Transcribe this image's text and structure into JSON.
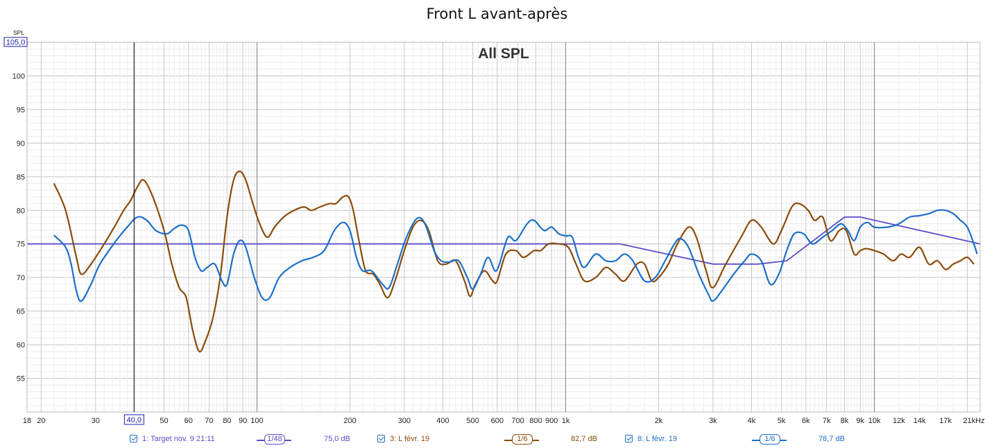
{
  "title": "Front L avant-après",
  "chart_data": {
    "type": "line",
    "title": "Front L avant-après",
    "subtitle": "All SPL",
    "ylabel": "SPL",
    "x_scale": "log",
    "x_unit": "kHz",
    "xlim": [
      18,
      22000
    ],
    "ylim": [
      50,
      105
    ],
    "y_ticks": [
      55,
      60,
      65,
      70,
      75,
      80,
      85,
      90,
      95,
      100
    ],
    "y_readout": "105,0",
    "x_readout": "40,0",
    "x_ticks": [
      {
        "v": 18,
        "label": "18"
      },
      {
        "v": 20,
        "label": "20"
      },
      {
        "v": 30,
        "label": "30"
      },
      {
        "v": 50,
        "label": "50"
      },
      {
        "v": 60,
        "label": "60"
      },
      {
        "v": 70,
        "label": "70"
      },
      {
        "v": 80,
        "label": "80"
      },
      {
        "v": 90,
        "label": "90"
      },
      {
        "v": 100,
        "label": "100"
      },
      {
        "v": 200,
        "label": "200"
      },
      {
        "v": 300,
        "label": "300"
      },
      {
        "v": 400,
        "label": "400"
      },
      {
        "v": 500,
        "label": "500"
      },
      {
        "v": 600,
        "label": "600"
      },
      {
        "v": 700,
        "label": "700"
      },
      {
        "v": 800,
        "label": "800"
      },
      {
        "v": 900,
        "label": "900"
      },
      {
        "v": 1000,
        "label": "1k"
      },
      {
        "v": 2000,
        "label": "2k"
      },
      {
        "v": 3000,
        "label": "3k"
      },
      {
        "v": 4000,
        "label": "4k"
      },
      {
        "v": 5000,
        "label": "5k"
      },
      {
        "v": 6000,
        "label": "6k"
      },
      {
        "v": 7000,
        "label": "7k"
      },
      {
        "v": 8000,
        "label": "8k"
      },
      {
        "v": 9000,
        "label": "9k"
      },
      {
        "v": 10000,
        "label": "10k"
      },
      {
        "v": 12000,
        "label": "12k"
      },
      {
        "v": 14000,
        "label": "14k"
      },
      {
        "v": 17000,
        "label": "17k"
      },
      {
        "v": 21000,
        "label": "21kHz"
      }
    ],
    "cursor_x": 40,
    "grid": true,
    "legend_position": "bottom",
    "series": [
      {
        "name": "1: Target nov. 9 21:11",
        "color": "#5a4fc9",
        "smoothing": "1/48",
        "level": "75,0 dB",
        "points": [
          [
            18,
            75
          ],
          [
            1500,
            75
          ],
          [
            3000,
            72
          ],
          [
            4200,
            72
          ],
          [
            5200,
            72.5
          ],
          [
            8000,
            79
          ],
          [
            9000,
            79
          ],
          [
            22000,
            75
          ]
        ]
      },
      {
        "name": "3: L févr. 19",
        "color": "#8b4a0a",
        "smoothing": "1/6",
        "level": "82,7 dB",
        "points": [
          [
            22,
            84
          ],
          [
            24,
            80
          ],
          [
            26,
            73
          ],
          [
            27,
            70.5
          ],
          [
            29,
            72
          ],
          [
            32,
            75
          ],
          [
            35,
            78
          ],
          [
            37,
            80
          ],
          [
            39,
            81.5
          ],
          [
            41,
            83.5
          ],
          [
            43,
            84.5
          ],
          [
            46,
            82
          ],
          [
            50,
            77
          ],
          [
            53,
            72
          ],
          [
            56,
            68.5
          ],
          [
            59,
            67
          ],
          [
            62,
            62
          ],
          [
            65,
            59
          ],
          [
            68,
            60.5
          ],
          [
            72,
            64
          ],
          [
            76,
            70
          ],
          [
            80,
            79
          ],
          [
            84,
            84.5
          ],
          [
            88,
            85.8
          ],
          [
            92,
            84.5
          ],
          [
            97,
            81
          ],
          [
            102,
            78
          ],
          [
            108,
            76
          ],
          [
            114,
            77.5
          ],
          [
            122,
            79
          ],
          [
            132,
            80
          ],
          [
            142,
            80.5
          ],
          [
            150,
            80
          ],
          [
            160,
            80.5
          ],
          [
            172,
            81
          ],
          [
            180,
            81
          ],
          [
            190,
            82
          ],
          [
            198,
            82
          ],
          [
            205,
            80
          ],
          [
            215,
            75
          ],
          [
            225,
            71
          ],
          [
            238,
            70.5
          ],
          [
            250,
            69
          ],
          [
            265,
            67
          ],
          [
            280,
            69.5
          ],
          [
            300,
            74
          ],
          [
            320,
            77.5
          ],
          [
            340,
            78.5
          ],
          [
            360,
            77
          ],
          [
            385,
            72.5
          ],
          [
            410,
            72
          ],
          [
            440,
            72.5
          ],
          [
            470,
            69.5
          ],
          [
            490,
            67.2
          ],
          [
            510,
            69
          ],
          [
            545,
            71
          ],
          [
            580,
            69.5
          ],
          [
            600,
            69.5
          ],
          [
            640,
            73.5
          ],
          [
            690,
            74
          ],
          [
            730,
            73
          ],
          [
            790,
            74
          ],
          [
            830,
            74
          ],
          [
            880,
            75
          ],
          [
            950,
            75
          ],
          [
            1020,
            74.5
          ],
          [
            1080,
            72
          ],
          [
            1150,
            69.5
          ],
          [
            1250,
            70
          ],
          [
            1350,
            71.5
          ],
          [
            1450,
            70.5
          ],
          [
            1550,
            69.5
          ],
          [
            1700,
            72
          ],
          [
            1800,
            72
          ],
          [
            1900,
            69.5
          ],
          [
            2000,
            70
          ],
          [
            2150,
            72
          ],
          [
            2300,
            75
          ],
          [
            2500,
            77.5
          ],
          [
            2650,
            76
          ],
          [
            2850,
            71
          ],
          [
            3000,
            68.5
          ],
          [
            3300,
            72
          ],
          [
            3700,
            76
          ],
          [
            4000,
            78.5
          ],
          [
            4300,
            77.5
          ],
          [
            4700,
            75
          ],
          [
            5000,
            77
          ],
          [
            5400,
            80.5
          ],
          [
            5700,
            81
          ],
          [
            6100,
            80
          ],
          [
            6400,
            78.5
          ],
          [
            6800,
            79
          ],
          [
            7200,
            75.5
          ],
          [
            7700,
            77
          ],
          [
            8100,
            77
          ],
          [
            8600,
            73.5
          ],
          [
            9000,
            74
          ],
          [
            9400,
            74.3
          ],
          [
            10000,
            74
          ],
          [
            10700,
            73.5
          ],
          [
            11500,
            72.5
          ],
          [
            12200,
            73.5
          ],
          [
            13000,
            73
          ],
          [
            14000,
            74.5
          ],
          [
            15000,
            72
          ],
          [
            16000,
            72.5
          ],
          [
            17000,
            71.2
          ],
          [
            18000,
            72
          ],
          [
            19000,
            72.5
          ],
          [
            20000,
            73
          ],
          [
            21000,
            72
          ]
        ]
      },
      {
        "name": "8: L févr. 19",
        "color": "#1c6fc7",
        "smoothing": "1/6",
        "level": "78,7 dB",
        "points": [
          [
            22,
            76.3
          ],
          [
            24,
            74.5
          ],
          [
            25,
            72
          ],
          [
            26,
            68
          ],
          [
            27,
            66.5
          ],
          [
            29,
            69
          ],
          [
            31,
            72
          ],
          [
            35,
            75.5
          ],
          [
            38,
            77.5
          ],
          [
            41,
            79
          ],
          [
            44,
            78.5
          ],
          [
            47,
            77
          ],
          [
            51,
            76.5
          ],
          [
            54,
            77.3
          ],
          [
            57,
            77.8
          ],
          [
            60,
            77
          ],
          [
            63,
            73
          ],
          [
            66,
            71
          ],
          [
            69,
            71.5
          ],
          [
            73,
            72
          ],
          [
            77,
            69.5
          ],
          [
            80,
            69
          ],
          [
            84,
            73.5
          ],
          [
            88,
            75.5
          ],
          [
            92,
            74.5
          ],
          [
            98,
            70
          ],
          [
            104,
            67
          ],
          [
            110,
            67
          ],
          [
            118,
            70
          ],
          [
            128,
            71.5
          ],
          [
            140,
            72.5
          ],
          [
            152,
            73
          ],
          [
            165,
            74
          ],
          [
            178,
            77
          ],
          [
            190,
            78.2
          ],
          [
            200,
            77
          ],
          [
            210,
            73
          ],
          [
            220,
            71
          ],
          [
            235,
            71
          ],
          [
            255,
            69
          ],
          [
            268,
            68.5
          ],
          [
            285,
            72
          ],
          [
            305,
            76
          ],
          [
            330,
            78.8
          ],
          [
            350,
            78
          ],
          [
            375,
            74
          ],
          [
            395,
            72.5
          ],
          [
            420,
            72.3
          ],
          [
            450,
            72.5
          ],
          [
            480,
            70
          ],
          [
            500,
            68.3
          ],
          [
            530,
            70.5
          ],
          [
            560,
            73
          ],
          [
            590,
            71
          ],
          [
            610,
            72
          ],
          [
            650,
            76
          ],
          [
            690,
            75.5
          ],
          [
            750,
            78
          ],
          [
            790,
            78.5
          ],
          [
            850,
            77
          ],
          [
            900,
            77.5
          ],
          [
            950,
            76.5
          ],
          [
            1000,
            76.2
          ],
          [
            1050,
            76
          ],
          [
            1100,
            73
          ],
          [
            1150,
            71.5
          ],
          [
            1250,
            73.5
          ],
          [
            1350,
            72.5
          ],
          [
            1450,
            72.5
          ],
          [
            1550,
            73.5
          ],
          [
            1650,
            72.5
          ],
          [
            1800,
            69.5
          ],
          [
            1950,
            70
          ],
          [
            2100,
            72.5
          ],
          [
            2250,
            75
          ],
          [
            2350,
            75.8
          ],
          [
            2500,
            74.5
          ],
          [
            2700,
            70.5
          ],
          [
            2900,
            67.5
          ],
          [
            3000,
            66.5
          ],
          [
            3200,
            68
          ],
          [
            3500,
            70.5
          ],
          [
            3800,
            72.5
          ],
          [
            4000,
            73.5
          ],
          [
            4300,
            72.5
          ],
          [
            4600,
            69
          ],
          [
            4900,
            70.5
          ],
          [
            5200,
            74
          ],
          [
            5500,
            76.5
          ],
          [
            5900,
            76.5
          ],
          [
            6300,
            75
          ],
          [
            6800,
            76
          ],
          [
            7300,
            77
          ],
          [
            7800,
            78
          ],
          [
            8200,
            77
          ],
          [
            8600,
            75.5
          ],
          [
            9000,
            77.5
          ],
          [
            9500,
            78.2
          ],
          [
            10000,
            77.5
          ],
          [
            11000,
            77.5
          ],
          [
            12000,
            78
          ],
          [
            13000,
            79
          ],
          [
            14000,
            79.2
          ],
          [
            15000,
            79.5
          ],
          [
            16000,
            80
          ],
          [
            17000,
            80
          ],
          [
            18000,
            79.5
          ],
          [
            19000,
            78.5
          ],
          [
            20000,
            77.5
          ],
          [
            21000,
            75
          ],
          [
            21500,
            73.5
          ]
        ]
      }
    ]
  },
  "legend": [
    {
      "label": "1: Target nov. 9 21:11",
      "smoothing": "1/48",
      "level": "75,0 dB",
      "color": "#5a4fc9"
    },
    {
      "label": "3: L févr. 19",
      "smoothing": "1/6",
      "level": "82,7 dB",
      "color": "#8b4a0a"
    },
    {
      "label": "8: L févr. 19",
      "smoothing": "1/6",
      "level": "78,7 dB",
      "color": "#1c6fc7"
    }
  ]
}
